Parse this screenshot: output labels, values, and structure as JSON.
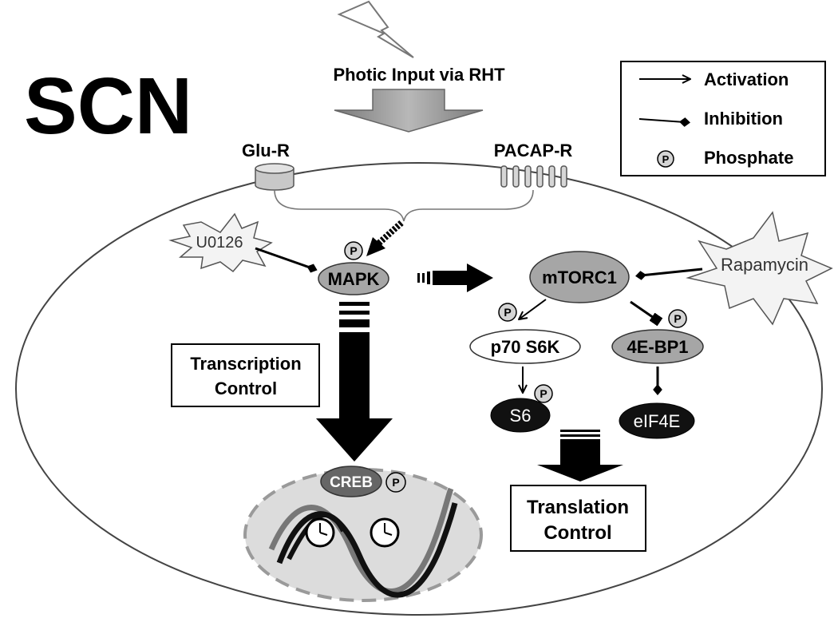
{
  "title": "SCN",
  "input_label": "Photic Input via RHT",
  "receptors": {
    "glu": "Glu-R",
    "pacap": "PACAP-R"
  },
  "legend": {
    "activation": "Activation",
    "inhibition": "Inhibition",
    "phosphate": "Phosphate"
  },
  "phospho_symbol": "P",
  "nodes": {
    "u0126": "U0126",
    "mapk": "MAPK",
    "mtorc1": "mTORC1",
    "rapamycin": "Rapamycin",
    "p70s6k": "p70 S6K",
    "bp1": "4E-BP1",
    "s6": "S6",
    "eif4e": "eIF4E",
    "creb": "CREB"
  },
  "boxes": {
    "transcription_line1": "Transcription",
    "transcription_line2": "Control",
    "translation_line1": "Translation",
    "translation_line2": "Control"
  },
  "colors": {
    "grey_node": "#a6a6a6",
    "dark_node": "#111111",
    "nucleus_fill": "#dcdcdc",
    "arrow_grey": "#9a9a9a"
  }
}
